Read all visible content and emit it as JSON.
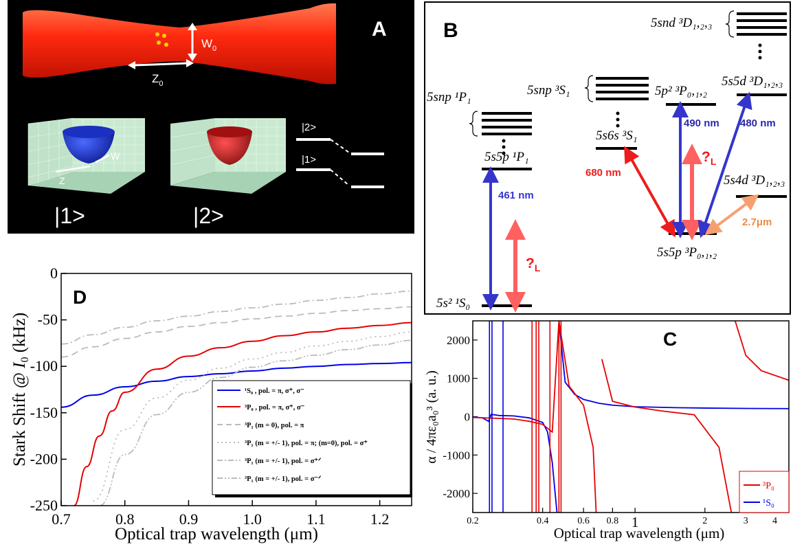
{
  "panel_a": {
    "label": "A",
    "w0": "W",
    "w0_sub": "0",
    "z0": "Z",
    "z0_sub": "0",
    "state1": "|1>",
    "state2": "|2>",
    "level_top": "|2>",
    "level_bottom": "|1>",
    "colors": {
      "beam": "#ff2a10",
      "well1": "#2030d0",
      "well2": "#c01818",
      "background": "#000000"
    }
  },
  "panel_b": {
    "label": "B",
    "ground": "5s² ¹S₀",
    "p1": "5s5p ¹P₁",
    "snp1": "5snp ¹P₁",
    "s6s": "5s6s ³S₁",
    "snp3": "5snp ³S₁",
    "p2": "5p² ³P₀,₁,₂",
    "d5": "5s5d ³D₁,₂,₃",
    "snd": "5snd ³D₁,₂,₃",
    "d4": "5s4d ³D₁,₂,₃",
    "p3": "5s5p ³P₀,₁,₂",
    "w461": "461 nm",
    "w680": "680 nm",
    "w490": "490 nm",
    "w480": "480 nm",
    "w27": "2.7μm",
    "lam_L": "?",
    "lam_L_sub": "L"
  },
  "panel_d": {
    "label": "D",
    "xlabel": "Optical trap wavelength (μm)",
    "ylabel_a": "Stark Shift @",
    "ylabel_b": "I",
    "ylabel_sub": "0",
    "ylabel_c": "(kHz)",
    "legend": [
      "¹S₀ , pol. = π, σ⁺, σ⁻",
      "³P₀ , pol. = π, σ⁺, σ⁻",
      "³P₁ (m = 0), pol. = π",
      "³P₁ (m = +/- 1), pol. = π; (m=0), pol. = σ⁺",
      "³P₁ (m = +/- 1), pol. = σ⁺ᐟ",
      "³P₁ (m = +/- 1), pol. = σ⁻ᐟ"
    ]
  },
  "panel_c": {
    "label": "C",
    "xlabel": "Optical trap wavelength (μm)",
    "ylabel": "α / 4πε₀a₀³ (a. u.)",
    "legend": [
      "³P₀",
      "¹S₀"
    ]
  },
  "chart_data": [
    {
      "type": "line",
      "panel": "D",
      "xlabel": "Optical trap wavelength (μm)",
      "ylabel": "Stark Shift @ I0 (kHz)",
      "xlim": [
        0.7,
        1.25
      ],
      "ylim": [
        -250,
        0
      ],
      "xticks": [
        "0.7",
        "0.8",
        "0.9",
        "1.0",
        "1.1",
        "1.2"
      ],
      "yticks": [
        "0",
        "-50",
        "-100",
        "-150",
        "-200",
        "-250"
      ],
      "legend_position": "bottom-right",
      "x": [
        0.7,
        0.75,
        0.8,
        0.85,
        0.9,
        0.95,
        1.0,
        1.05,
        1.1,
        1.15,
        1.2,
        1.25
      ],
      "series": [
        {
          "name": "1S0, pol. = π, σ+, σ-",
          "color": "#0000e6",
          "style": "solid",
          "values": [
            -144,
            -131,
            -122,
            -116,
            -111,
            -108,
            -105,
            -102,
            -100,
            -98,
            -97,
            -96
          ]
        },
        {
          "name": "3P0, pol. = π, σ+, σ-",
          "color": "#e60000",
          "style": "solid",
          "x": [
            0.72,
            0.74,
            0.76,
            0.78,
            0.8,
            0.85,
            0.9,
            0.95,
            1.0,
            1.05,
            1.1,
            1.15,
            1.2,
            1.25
          ],
          "values": [
            -250,
            -208,
            -175,
            -148,
            -128,
            -103,
            -89,
            -80,
            -73,
            -67,
            -63,
            -59,
            -56,
            -53
          ]
        },
        {
          "name": "3P1 (m = 0), pol. = π",
          "color": "#bbbbbb",
          "style": "dash",
          "values": [
            -90,
            -79,
            -70,
            -63,
            -57,
            -53,
            -49,
            -46,
            -43,
            -40,
            -38,
            -36
          ]
        },
        {
          "name": "3P1 (m = +/- 1), pol. = π; (m=0), pol. = σ+",
          "color": "#bbbbbb",
          "style": "dot",
          "x": [
            0.75,
            0.8,
            0.85,
            0.9,
            0.95,
            1.0,
            1.05,
            1.1,
            1.15,
            1.2,
            1.25
          ],
          "values": [
            -245,
            -168,
            -134,
            -115,
            -102,
            -92,
            -85,
            -78,
            -73,
            -68,
            -63
          ]
        },
        {
          "name": "3P1 (m = +/- 1), pol. = σ+/-",
          "color": "#bbbbbb",
          "style": "dashdot",
          "values": [
            -76,
            -66,
            -58,
            -51,
            -46,
            -41,
            -37,
            -33,
            -29,
            -26,
            -22,
            -19
          ]
        },
        {
          "name": "3P1 (m = +/- 1), pol. = σ-/+",
          "color": "#bbbbbb",
          "style": "dashdotdot",
          "x": [
            0.76,
            0.8,
            0.85,
            0.9,
            0.95,
            1.0,
            1.05,
            1.1,
            1.15,
            1.2,
            1.25
          ],
          "values": [
            -250,
            -195,
            -152,
            -128,
            -112,
            -101,
            -94,
            -88,
            -82,
            -77,
            -72
          ]
        }
      ]
    },
    {
      "type": "line",
      "panel": "C",
      "xlabel": "Optical trap wavelength (μm)",
      "ylabel": "α / 4πε0a0^3 (a. u.)",
      "x_scale": "log",
      "xlim": [
        0.2,
        4.6
      ],
      "ylim": [
        -2500,
        2500
      ],
      "xticks": [
        "0.2",
        "0.4",
        "0.6",
        "0.8",
        "1",
        "2",
        "3",
        "4"
      ],
      "yticks": [
        "2000",
        "1000",
        "0",
        "-1000",
        "-2000"
      ],
      "legend_position": "bottom-right",
      "series": [
        {
          "name": "1S0",
          "color": "#0000e6",
          "x": [
            0.2,
            0.22,
            0.234,
            0.24,
            0.26,
            0.3,
            0.35,
            0.4,
            0.42,
            0.44,
            0.461,
            0.47,
            0.5,
            0.55,
            0.6,
            0.7,
            0.8,
            1.0,
            1.5,
            2,
            3,
            4.6
          ],
          "values": [
            -10,
            -30,
            -120,
            60,
            30,
            20,
            -30,
            -150,
            -400,
            -1200,
            -2500,
            2500,
            900,
            580,
            450,
            350,
            300,
            260,
            235,
            225,
            215,
            210
          ]
        },
        {
          "name": "3P0",
          "color": "#e60000",
          "x": [
            0.2,
            0.25,
            0.3,
            0.35,
            0.4,
            0.44,
            0.47,
            0.52,
            0.6,
            0.66,
            0.68,
            0.72,
            0.8,
            1.0,
            1.3,
            1.8,
            2.3,
            2.6,
            2.7,
            3.0,
            3.5,
            4.6
          ],
          "values": [
            -20,
            -40,
            -60,
            -120,
            -200,
            -400,
            2500,
            800,
            300,
            -800,
            -2500,
            1500,
            400,
            250,
            150,
            50,
            -800,
            -2500,
            2500,
            1600,
            1200,
            950
          ]
        }
      ]
    }
  ]
}
